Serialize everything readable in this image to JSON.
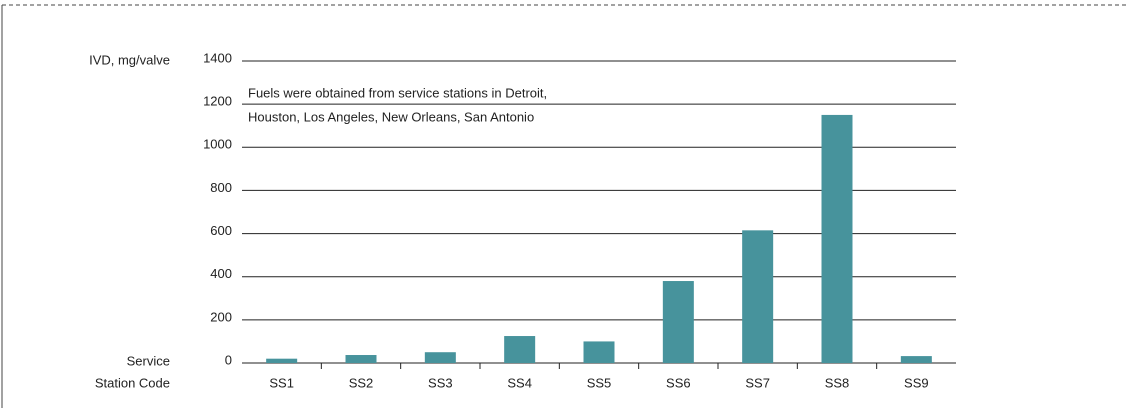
{
  "chart_data": {
    "type": "bar",
    "y_label": "IVD, mg/valve",
    "x_label": [
      "Service",
      "Station Code"
    ],
    "annotation": [
      "Fuels were obtained from service stations in Detroit,",
      "Houston, Los Angeles, New Orleans, San Antonio"
    ],
    "categories": [
      "SS1",
      "SS2",
      "SS3",
      "SS4",
      "SS5",
      "SS6",
      "SS7",
      "SS8",
      "SS9"
    ],
    "values": [
      20,
      37,
      50,
      125,
      100,
      380,
      615,
      1150,
      32
    ],
    "color": "#47939c",
    "ylim": [
      0,
      1400
    ],
    "yticks": [
      0,
      200,
      400,
      600,
      800,
      1000,
      1200,
      1400
    ],
    "grid": true
  }
}
